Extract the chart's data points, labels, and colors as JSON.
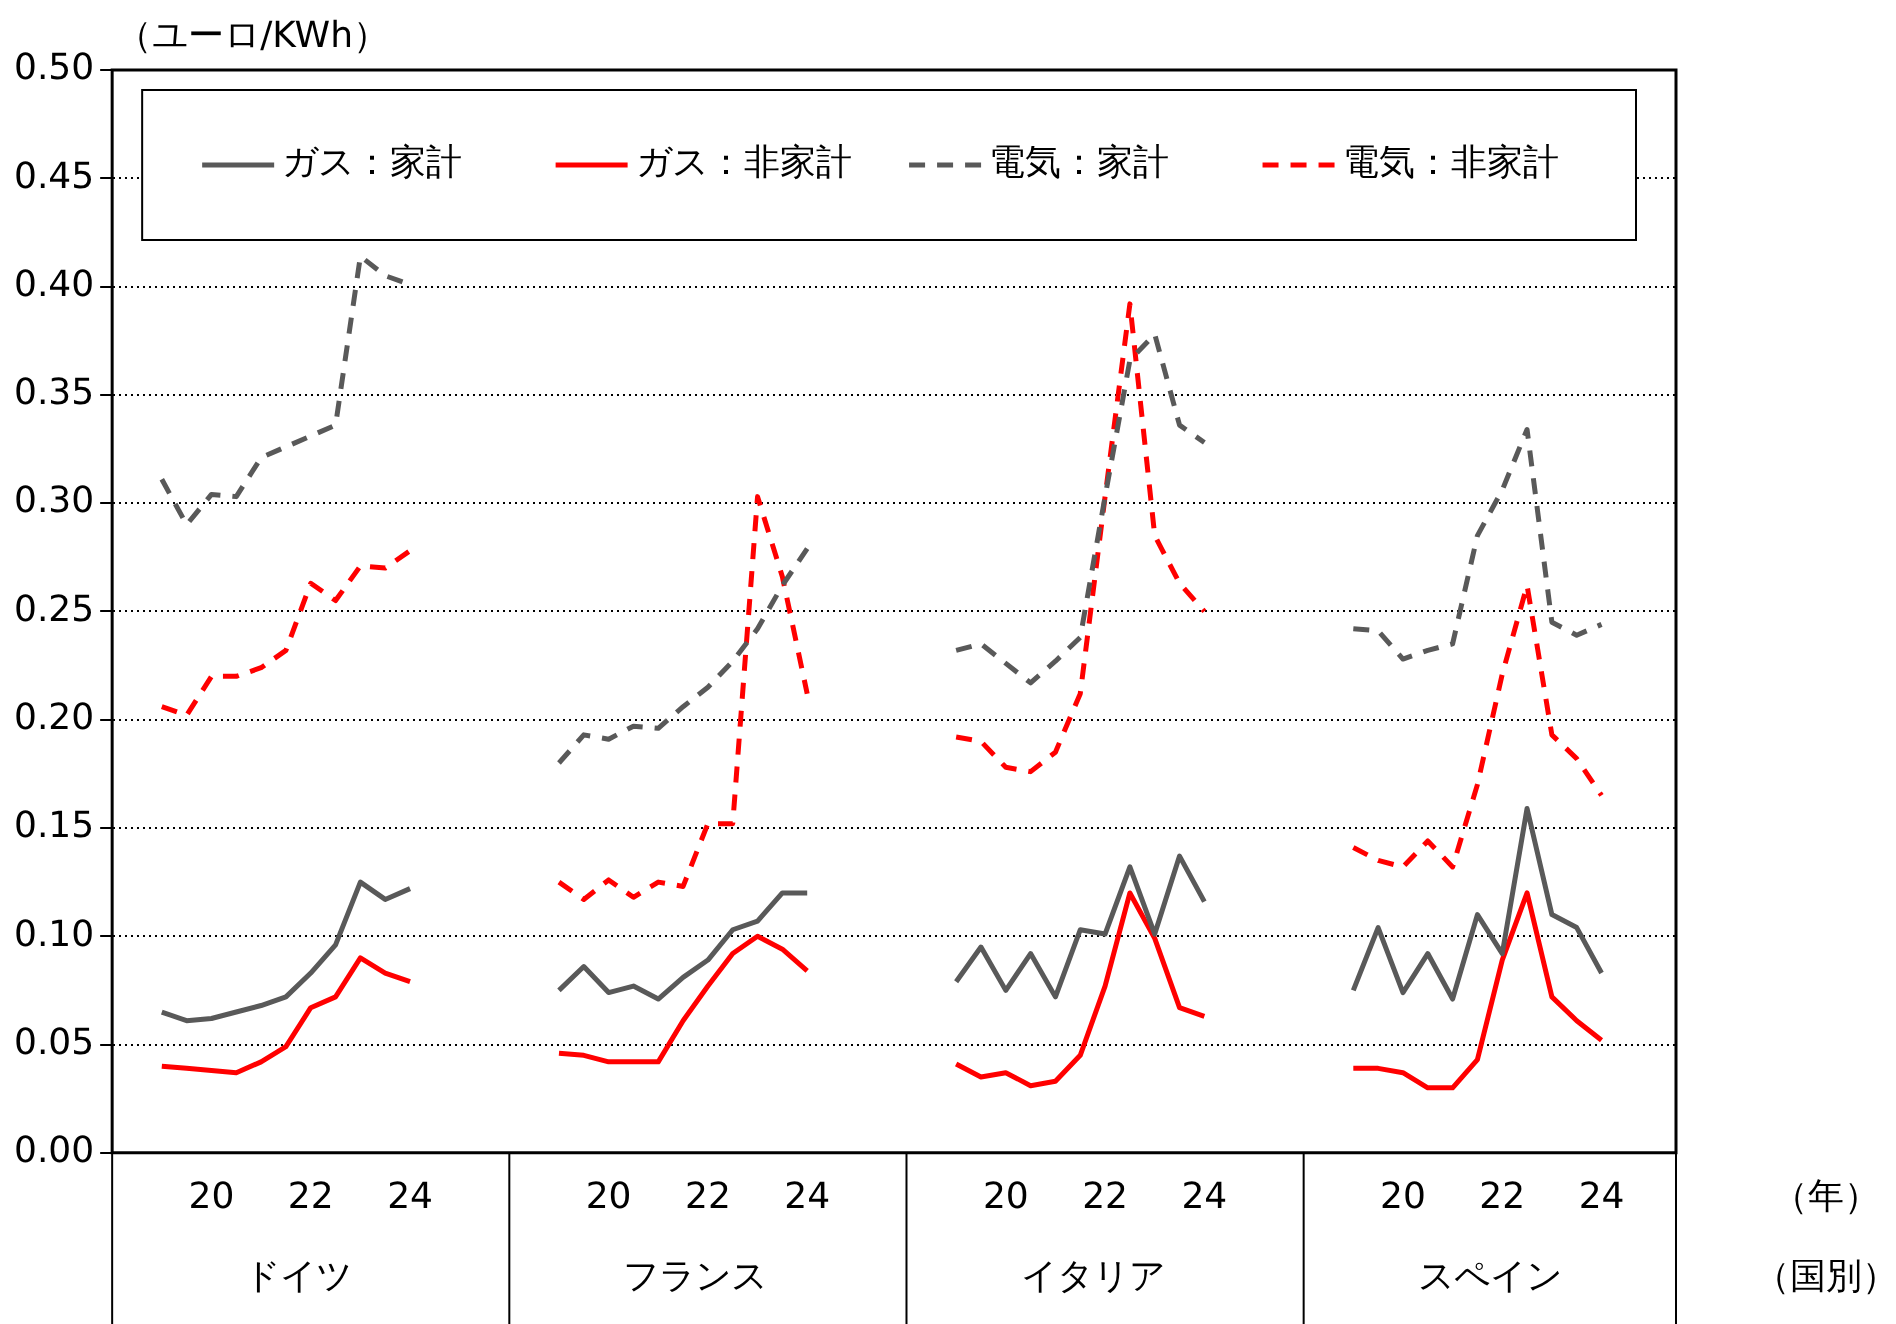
{
  "chart_data": {
    "type": "line",
    "ylabel": "（ユーロ/KWh）",
    "categories": [
      null,
      null,
      null,
      null,
      "20",
      null,
      null,
      null,
      "22",
      null,
      null,
      null,
      "24",
      null,
      null,
      null,
      null,
      null,
      null,
      null,
      "20",
      null,
      null,
      null,
      "22",
      null,
      null,
      null,
      "24",
      null,
      null,
      null,
      null,
      null,
      null,
      null,
      "20",
      null,
      null,
      null,
      "22",
      null,
      null,
      null,
      "24",
      null,
      null,
      null,
      null,
      null,
      null,
      null,
      "20",
      null,
      null,
      null,
      "22",
      null,
      null,
      null,
      "24",
      null,
      null,
      null
    ],
    "series": [
      {
        "name": "ガス：家計",
        "color": "#595959",
        "line_style": "solid",
        "values": [
          null,
          null,
          0.065,
          0.061,
          0.062,
          0.065,
          0.068,
          0.072,
          0.083,
          0.096,
          0.125,
          0.117,
          0.122,
          null,
          null,
          null,
          null,
          null,
          0.075,
          0.086,
          0.074,
          0.077,
          0.071,
          0.081,
          0.089,
          0.103,
          0.107,
          0.12,
          0.12,
          null,
          null,
          null,
          null,
          null,
          0.079,
          0.095,
          0.075,
          0.092,
          0.072,
          0.103,
          0.101,
          0.132,
          0.101,
          0.137,
          0.116,
          null,
          null,
          null,
          null,
          null,
          0.075,
          0.104,
          0.074,
          0.092,
          0.071,
          0.11,
          0.092,
          0.159,
          0.11,
          0.104,
          0.083,
          null,
          null,
          null
        ]
      },
      {
        "name": "ガス：非家計",
        "color": "#ff0000",
        "line_style": "solid",
        "values": [
          null,
          null,
          0.04,
          0.039,
          0.038,
          0.037,
          0.042,
          0.049,
          0.067,
          0.072,
          0.09,
          0.083,
          0.079,
          null,
          null,
          null,
          null,
          null,
          0.046,
          0.045,
          0.042,
          0.042,
          0.042,
          0.061,
          0.077,
          0.092,
          0.1,
          0.094,
          0.084,
          null,
          null,
          null,
          null,
          null,
          0.041,
          0.035,
          0.037,
          0.031,
          0.033,
          0.045,
          0.077,
          0.12,
          0.099,
          0.067,
          0.063,
          null,
          null,
          null,
          null,
          null,
          0.039,
          0.039,
          0.037,
          0.03,
          0.03,
          0.043,
          0.089,
          0.12,
          0.072,
          0.061,
          0.052,
          null,
          null,
          null
        ]
      },
      {
        "name": "電気：家計",
        "color": "#595959",
        "line_style": "dashed",
        "values": [
          null,
          null,
          0.311,
          0.29,
          0.304,
          0.303,
          0.321,
          0.326,
          0.331,
          0.336,
          0.414,
          0.405,
          0.401,
          null,
          null,
          null,
          null,
          null,
          0.18,
          0.193,
          0.191,
          0.197,
          0.196,
          0.206,
          0.215,
          0.227,
          0.242,
          0.262,
          0.279,
          null,
          null,
          null,
          null,
          null,
          0.232,
          0.235,
          0.226,
          0.217,
          0.227,
          0.238,
          0.303,
          0.366,
          0.378,
          0.336,
          0.328,
          null,
          null,
          null,
          null,
          null,
          0.242,
          0.241,
          0.228,
          0.232,
          0.235,
          0.285,
          0.306,
          0.334,
          0.245,
          0.239,
          0.244,
          null,
          null,
          null
        ]
      },
      {
        "name": "電気：非家計",
        "color": "#ff0000",
        "line_style": "dashed",
        "values": [
          null,
          null,
          0.206,
          0.202,
          0.22,
          0.22,
          0.224,
          0.232,
          0.263,
          0.255,
          0.271,
          0.27,
          0.278,
          null,
          null,
          null,
          null,
          null,
          0.125,
          0.117,
          0.126,
          0.118,
          0.125,
          0.123,
          0.152,
          0.152,
          0.303,
          0.266,
          0.212,
          null,
          null,
          null,
          null,
          null,
          0.192,
          0.19,
          0.178,
          0.176,
          0.185,
          0.212,
          0.303,
          0.392,
          0.285,
          0.263,
          0.25,
          null,
          null,
          null,
          null,
          null,
          0.141,
          0.135,
          0.132,
          0.144,
          0.132,
          0.17,
          0.221,
          0.262,
          0.193,
          0.182,
          0.165,
          null,
          null,
          null
        ]
      }
    ],
    "ylim": [
      0,
      0.5
    ],
    "yticks": [
      {
        "value": 0,
        "label": "0.00"
      },
      {
        "value": 0.05,
        "label": "0.05"
      },
      {
        "value": 0.1,
        "label": "0.10"
      },
      {
        "value": 0.15,
        "label": "0.15"
      },
      {
        "value": 0.2,
        "label": "0.20"
      },
      {
        "value": 0.25,
        "label": "0.25"
      },
      {
        "value": 0.3,
        "label": "0.30"
      },
      {
        "value": 0.35,
        "label": "0.35"
      },
      {
        "value": 0.4,
        "label": "0.40"
      },
      {
        "value": 0.45,
        "label": "0.45"
      },
      {
        "value": 0.5,
        "label": "0.50"
      }
    ],
    "annotations": [
      "ドイツ",
      "フランス",
      "イタリア",
      "スペイン",
      "（年）",
      "（国別）"
    ],
    "grid": "y",
    "legend": "top",
    "marker": "none"
  }
}
